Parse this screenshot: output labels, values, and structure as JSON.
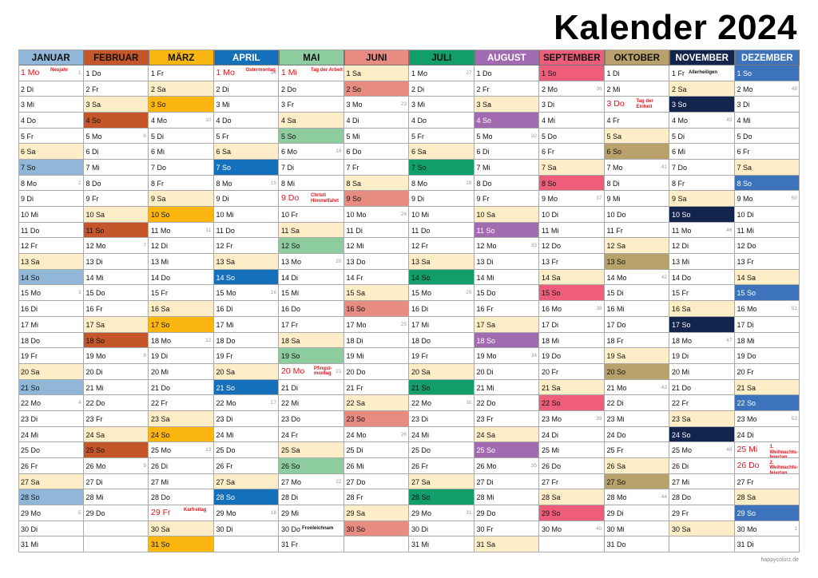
{
  "title": "Kalender 2024",
  "credit": "happycolorz.de",
  "weekend_fill": "#fdeec8",
  "months": [
    {
      "name": "JANUAR",
      "color": "#91b7d8",
      "dark": false,
      "days": [
        "1 Mo",
        "2 Di",
        "3 Mi",
        "4 Do",
        "5 Fr",
        "6 Sa",
        "7 So",
        "8 Mo",
        "9 Di",
        "10 Mi",
        "11 Do",
        "12 Fr",
        "13 Sa",
        "14 So",
        "15 Mo",
        "16 Di",
        "17 Mi",
        "18 Do",
        "19 Fr",
        "20 Sa",
        "21 So",
        "22 Mo",
        "23 Di",
        "24 Mi",
        "25 Do",
        "26 Fr",
        "27 Sa",
        "28 So",
        "29 Mo",
        "30 Di",
        "31 Mi"
      ]
    },
    {
      "name": "FEBRUAR",
      "color": "#c5562a",
      "dark": false,
      "days": [
        "1 Do",
        "2 Fr",
        "3 Sa",
        "4 So",
        "5 Mo",
        "6 Di",
        "7 Mi",
        "8 Do",
        "9 Fr",
        "10 Sa",
        "11 So",
        "12 Mo",
        "13 Di",
        "14 Mi",
        "15 Do",
        "16 Fr",
        "17 Sa",
        "18 So",
        "19 Mo",
        "20 Di",
        "21 Mi",
        "22 Do",
        "23 Fr",
        "24 Sa",
        "25 So",
        "26 Mo",
        "27 Di",
        "28 Mi",
        "29 Do"
      ]
    },
    {
      "name": "MÄRZ",
      "color": "#fbb710",
      "dark": false,
      "days": [
        "1 Fr",
        "2 Sa",
        "3 So",
        "4 Mo",
        "5 Di",
        "6 Mi",
        "7 Do",
        "8 Fr",
        "9 Sa",
        "10 So",
        "11 Mo",
        "12 Di",
        "13 Mi",
        "14 Do",
        "15 Fr",
        "16 Sa",
        "17 So",
        "18 Mo",
        "19 Di",
        "20 Mi",
        "21 Do",
        "22 Fr",
        "23 Sa",
        "24 So",
        "25 Mo",
        "26 Di",
        "27 Mi",
        "28 Do",
        "29 Fr",
        "30 Sa",
        "31 So"
      ]
    },
    {
      "name": "APRIL",
      "color": "#1570bb",
      "dark": true,
      "days": [
        "1 Mo",
        "2 Di",
        "3 Mi",
        "4 Do",
        "5 Fr",
        "6 Sa",
        "7 So",
        "8 Mo",
        "9 Di",
        "10 Mi",
        "11 Do",
        "12 Fr",
        "13 Sa",
        "14 So",
        "15 Mo",
        "16 Di",
        "17 Mi",
        "18 Do",
        "19 Fr",
        "20 Sa",
        "21 So",
        "22 Mo",
        "23 Di",
        "24 Mi",
        "25 Do",
        "26 Fr",
        "27 Sa",
        "28 So",
        "29 Mo",
        "30 Di"
      ]
    },
    {
      "name": "MAI",
      "color": "#8ccc9f",
      "dark": false,
      "days": [
        "1 Mi",
        "2 Do",
        "3 Fr",
        "4 Sa",
        "5 So",
        "6 Mo",
        "7 Di",
        "8 Mi",
        "9 Do",
        "10 Fr",
        "11 Sa",
        "12 So",
        "13 Mo",
        "14 Di",
        "15 Mi",
        "16 Do",
        "17 Fr",
        "18 Sa",
        "19 So",
        "20 Mo",
        "21 Di",
        "22 Mi",
        "23 Do",
        "24 Fr",
        "25 Sa",
        "26 So",
        "27 Mo",
        "28 Di",
        "29 Mi",
        "30 Do",
        "31 Fr"
      ]
    },
    {
      "name": "JUNI",
      "color": "#e88b80",
      "dark": false,
      "days": [
        "1 Sa",
        "2 So",
        "3 Mo",
        "4 Di",
        "5 Mi",
        "6 Do",
        "7 Fr",
        "8 Sa",
        "9 So",
        "10 Mo",
        "11 Di",
        "12 Mi",
        "13 Do",
        "14 Fr",
        "15 Sa",
        "16 So",
        "17 Mo",
        "18 Di",
        "19 Mi",
        "20 Do",
        "21 Fr",
        "22 Sa",
        "23 So",
        "24 Mo",
        "25 Di",
        "26 Mi",
        "27 Do",
        "28 Fr",
        "29 Sa",
        "30 So"
      ]
    },
    {
      "name": "JULI",
      "color": "#129e6a",
      "dark": false,
      "days": [
        "1 Mo",
        "2 Di",
        "3 Mi",
        "4 Do",
        "5 Fr",
        "6 Sa",
        "7 So",
        "8 Mo",
        "9 Di",
        "10 Mi",
        "11 Do",
        "12 Fr",
        "13 Sa",
        "14 So",
        "15 Mo",
        "16 Di",
        "17 Mi",
        "18 Do",
        "19 Fr",
        "20 Sa",
        "21 So",
        "22 Mo",
        "23 Di",
        "24 Mi",
        "25 Do",
        "26 Fr",
        "27 Sa",
        "28 So",
        "29 Mo",
        "30 Di",
        "31 Mi"
      ]
    },
    {
      "name": "AUGUST",
      "color": "#a26ab1",
      "dark": true,
      "days": [
        "1 Do",
        "2 Fr",
        "3 Sa",
        "4 So",
        "5 Mo",
        "6 Di",
        "7 Mi",
        "8 Do",
        "9 Fr",
        "10 Sa",
        "11 So",
        "12 Mo",
        "13 Di",
        "14 Mi",
        "15 Do",
        "16 Fr",
        "17 Sa",
        "18 So",
        "19 Mo",
        "20 Di",
        "21 Mi",
        "22 Do",
        "23 Fr",
        "24 Sa",
        "25 So",
        "26 Mo",
        "27 Di",
        "28 Mi",
        "29 Do",
        "30 Fr",
        "31 Sa"
      ]
    },
    {
      "name": "SEPTEMBER",
      "color": "#ee5e7a",
      "dark": false,
      "days": [
        "1 So",
        "2 Mo",
        "3 Di",
        "4 Mi",
        "5 Do",
        "6 Fr",
        "7 Sa",
        "8 So",
        "9 Mo",
        "10 Di",
        "11 Mi",
        "12 Do",
        "13 Fr",
        "14 Sa",
        "15 So",
        "16 Mo",
        "17 Di",
        "18 Mi",
        "19 Do",
        "20 Fr",
        "21 Sa",
        "22 So",
        "23 Mo",
        "24 Di",
        "25 Mi",
        "26 Do",
        "27 Fr",
        "28 Sa",
        "29 So",
        "30 Mo"
      ]
    },
    {
      "name": "OKTOBER",
      "color": "#b8a16b",
      "dark": false,
      "days": [
        "1 Di",
        "2 Mi",
        "3 Do",
        "4 Fr",
        "5 Sa",
        "6 So",
        "7 Mo",
        "8 Di",
        "9 Mi",
        "10 Do",
        "11 Fr",
        "12 Sa",
        "13 So",
        "14 Mo",
        "15 Di",
        "16 Mi",
        "17 Do",
        "18 Fr",
        "19 Sa",
        "20 So",
        "21 Mo",
        "22 Di",
        "23 Mi",
        "24 Do",
        "25 Fr",
        "26 Sa",
        "27 So",
        "28 Mo",
        "29 Di",
        "30 Mi",
        "31 Do"
      ]
    },
    {
      "name": "NOVEMBER",
      "color": "#14254d",
      "dark": true,
      "days": [
        "1 Fr",
        "2 Sa",
        "3 So",
        "4 Mo",
        "5 Di",
        "6 Mi",
        "7 Do",
        "8 Fr",
        "9 Sa",
        "10 So",
        "11 Mo",
        "12 Di",
        "13 Mi",
        "14 Do",
        "15 Fr",
        "16 Sa",
        "17 So",
        "18 Mo",
        "19 Di",
        "20 Mi",
        "21 Do",
        "22 Fr",
        "23 Sa",
        "24 So",
        "25 Mo",
        "26 Di",
        "27 Mi",
        "28 Do",
        "29 Fr",
        "30 Sa"
      ]
    },
    {
      "name": "DEZEMBER",
      "color": "#3c73ba",
      "dark": true,
      "days": [
        "1 So",
        "2 Mo",
        "3 Di",
        "4 Mi",
        "5 Do",
        "6 Fr",
        "7 Sa",
        "8 So",
        "9 Mo",
        "10 Di",
        "11 Mi",
        "12 Do",
        "13 Fr",
        "14 Sa",
        "15 So",
        "16 Mo",
        "17 Di",
        "18 Mi",
        "19 Do",
        "20 Fr",
        "21 Sa",
        "22 So",
        "23 Mo",
        "24 Di",
        "25 Mi",
        "26 Do",
        "27 Fr",
        "28 Sa",
        "29 So",
        "30 Mo",
        "31 Di"
      ]
    }
  ],
  "holidays": [
    {
      "m": 0,
      "d": 1,
      "name": "Neujahr"
    },
    {
      "m": 2,
      "d": 29,
      "name": "Karfreitag"
    },
    {
      "m": 3,
      "d": 1,
      "name": "Ostermontag"
    },
    {
      "m": 4,
      "d": 1,
      "name": "Tag der Arbeit"
    },
    {
      "m": 4,
      "d": 9,
      "name": "Christi Himmelfahrt"
    },
    {
      "m": 4,
      "d": 20,
      "name": "Pfingst-montag"
    },
    {
      "m": 9,
      "d": 3,
      "name": "Tag der Einheit"
    },
    {
      "m": 11,
      "d": 25,
      "name": "1. Weihnachts-feiertag"
    },
    {
      "m": 11,
      "d": 26,
      "name": "2. Weihnachts-feiertag"
    }
  ],
  "observances": [
    {
      "m": 4,
      "d": 30,
      "name": "Fronleichnam"
    },
    {
      "m": 10,
      "d": 1,
      "name": "Allerheiligen"
    }
  ],
  "week_numbers": [
    {
      "m": 0,
      "d": 1,
      "w": "1"
    },
    {
      "m": 0,
      "d": 8,
      "w": "2"
    },
    {
      "m": 0,
      "d": 15,
      "w": "3"
    },
    {
      "m": 0,
      "d": 22,
      "w": "4"
    },
    {
      "m": 0,
      "d": 29,
      "w": "5"
    },
    {
      "m": 1,
      "d": 5,
      "w": "6"
    },
    {
      "m": 1,
      "d": 12,
      "w": "7"
    },
    {
      "m": 1,
      "d": 19,
      "w": "8"
    },
    {
      "m": 1,
      "d": 26,
      "w": "9"
    },
    {
      "m": 2,
      "d": 4,
      "w": "10"
    },
    {
      "m": 2,
      "d": 11,
      "w": "11"
    },
    {
      "m": 2,
      "d": 18,
      "w": "12"
    },
    {
      "m": 2,
      "d": 25,
      "w": "13"
    },
    {
      "m": 3,
      "d": 1,
      "w": "14"
    },
    {
      "m": 3,
      "d": 8,
      "w": "15"
    },
    {
      "m": 3,
      "d": 15,
      "w": "16"
    },
    {
      "m": 3,
      "d": 22,
      "w": "17"
    },
    {
      "m": 3,
      "d": 29,
      "w": "18"
    },
    {
      "m": 4,
      "d": 6,
      "w": "19"
    },
    {
      "m": 4,
      "d": 13,
      "w": "20"
    },
    {
      "m": 4,
      "d": 20,
      "w": "21"
    },
    {
      "m": 4,
      "d": 27,
      "w": "22"
    },
    {
      "m": 5,
      "d": 3,
      "w": "23"
    },
    {
      "m": 5,
      "d": 10,
      "w": "24"
    },
    {
      "m": 5,
      "d": 17,
      "w": "25"
    },
    {
      "m": 5,
      "d": 24,
      "w": "26"
    },
    {
      "m": 6,
      "d": 1,
      "w": "27"
    },
    {
      "m": 6,
      "d": 8,
      "w": "28"
    },
    {
      "m": 6,
      "d": 15,
      "w": "29"
    },
    {
      "m": 6,
      "d": 22,
      "w": "30"
    },
    {
      "m": 6,
      "d": 29,
      "w": "31"
    },
    {
      "m": 7,
      "d": 5,
      "w": "32"
    },
    {
      "m": 7,
      "d": 12,
      "w": "33"
    },
    {
      "m": 7,
      "d": 19,
      "w": "34"
    },
    {
      "m": 7,
      "d": 26,
      "w": "35"
    },
    {
      "m": 8,
      "d": 2,
      "w": "36"
    },
    {
      "m": 8,
      "d": 9,
      "w": "37"
    },
    {
      "m": 8,
      "d": 16,
      "w": "38"
    },
    {
      "m": 8,
      "d": 23,
      "w": "39"
    },
    {
      "m": 8,
      "d": 30,
      "w": "40"
    },
    {
      "m": 9,
      "d": 7,
      "w": "41"
    },
    {
      "m": 9,
      "d": 14,
      "w": "42"
    },
    {
      "m": 9,
      "d": 21,
      "w": "43"
    },
    {
      "m": 9,
      "d": 28,
      "w": "44"
    },
    {
      "m": 10,
      "d": 4,
      "w": "45"
    },
    {
      "m": 10,
      "d": 11,
      "w": "46"
    },
    {
      "m": 10,
      "d": 18,
      "w": "47"
    },
    {
      "m": 10,
      "d": 25,
      "w": "48"
    },
    {
      "m": 11,
      "d": 2,
      "w": "49"
    },
    {
      "m": 11,
      "d": 9,
      "w": "50"
    },
    {
      "m": 11,
      "d": 16,
      "w": "51"
    },
    {
      "m": 11,
      "d": 23,
      "w": "52"
    },
    {
      "m": 11,
      "d": 30,
      "w": "1"
    }
  ]
}
